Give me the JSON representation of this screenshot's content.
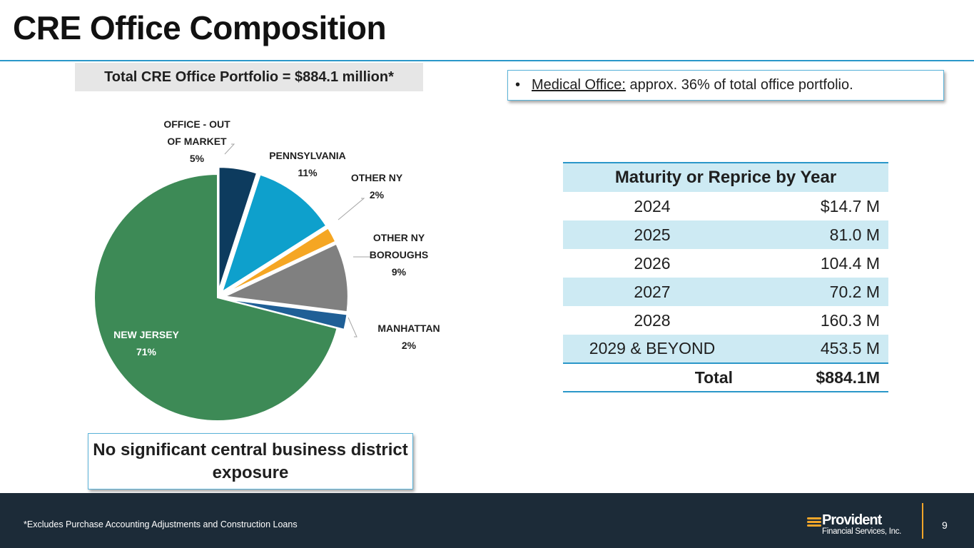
{
  "page": {
    "title": "CRE Office Composition",
    "total_label": "Total CRE Office Portfolio = $884.1 million*",
    "medical": {
      "bullet": "•",
      "underlined": "Medical Office:",
      "rest": " approx. 36% of total office portfolio."
    },
    "cbd_note": "No significant central business district exposure"
  },
  "chart_data": {
    "type": "pie",
    "title": "Total CRE Office Portfolio = $884.1 million*",
    "start_angle_deg": 0,
    "direction": "clockwise",
    "slices": [
      {
        "name": "OFFICE - OUT OF MARKET",
        "label_lines": [
          "OFFICE - OUT",
          "OF MARKET"
        ],
        "pct_label": "5%",
        "value": 5,
        "color": "#0d3b5e"
      },
      {
        "name": "PENNSYLVANIA",
        "label_lines": [
          "PENNSYLVANIA"
        ],
        "pct_label": "11%",
        "value": 11,
        "color": "#0ea0cc"
      },
      {
        "name": "OTHER NY",
        "label_lines": [
          "OTHER NY"
        ],
        "pct_label": "2%",
        "value": 2,
        "color": "#f5a623"
      },
      {
        "name": "OTHER NY BOROUGHS",
        "label_lines": [
          "OTHER NY",
          "BOROUGHS"
        ],
        "pct_label": "9%",
        "value": 9,
        "color": "#808080"
      },
      {
        "name": "MANHATTAN",
        "label_lines": [
          "MANHATTAN"
        ],
        "pct_label": "2%",
        "value": 2,
        "color": "#1f5f96"
      },
      {
        "name": "NEW JERSEY",
        "label_lines": [
          "NEW JERSEY"
        ],
        "pct_label": "71%",
        "value": 71,
        "color": "#3d8a56"
      }
    ]
  },
  "table": {
    "header": "Maturity or Reprice by Year",
    "rows": [
      {
        "year": "2024",
        "amount": "$14.7 M"
      },
      {
        "year": "2025",
        "amount": "81.0 M"
      },
      {
        "year": "2026",
        "amount": "104.4 M"
      },
      {
        "year": "2027",
        "amount": "70.2 M"
      },
      {
        "year": "2028",
        "amount": "160.3 M"
      },
      {
        "year": "2029 & BEYOND",
        "amount": "453.5 M"
      }
    ],
    "total_label": "Total",
    "total_value": "$884.1M"
  },
  "footer": {
    "footnote": "*Excludes Purchase Accounting Adjustments and Construction Loans",
    "logo_name": "Provident",
    "logo_sub": "Financial Services, Inc.",
    "page_number": "9",
    "accent": "#f2a62a",
    "bg": "#1c2b38"
  }
}
